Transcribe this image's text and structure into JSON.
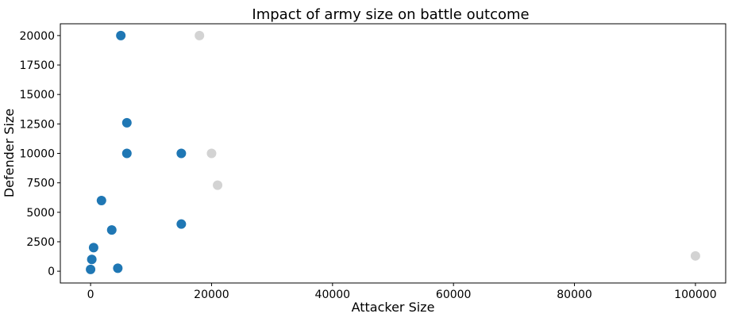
{
  "chart_data": {
    "type": "scatter",
    "title": "Impact of army size on battle outcome",
    "xlabel": "Attacker Size",
    "ylabel": "Defender Size",
    "xlim": [
      -5000,
      105000
    ],
    "ylim": [
      -1000,
      21000
    ],
    "xticks": [
      0,
      20000,
      40000,
      60000,
      80000,
      100000
    ],
    "yticks": [
      0,
      2500,
      5000,
      7500,
      10000,
      12500,
      15000,
      17500,
      20000
    ],
    "grid": false,
    "colors": {
      "blue": "#1f77b4",
      "gray": "#d3d3d3"
    },
    "series": [
      {
        "color": "#1f77b4",
        "points": [
          {
            "x": 5000,
            "y": 20000
          },
          {
            "x": 6000,
            "y": 12600
          },
          {
            "x": 6000,
            "y": 10000
          },
          {
            "x": 15000,
            "y": 10000
          },
          {
            "x": 1800,
            "y": 6000
          },
          {
            "x": 3500,
            "y": 3500
          },
          {
            "x": 15000,
            "y": 4000
          },
          {
            "x": 500,
            "y": 2000
          },
          {
            "x": 200,
            "y": 1000
          },
          {
            "x": 4500,
            "y": 250
          },
          {
            "x": 0,
            "y": 150
          }
        ]
      },
      {
        "color": "#d3d3d3",
        "points": [
          {
            "x": 18000,
            "y": 20000
          },
          {
            "x": 20000,
            "y": 10000
          },
          {
            "x": 21000,
            "y": 7300
          },
          {
            "x": 100000,
            "y": 1300
          }
        ]
      }
    ]
  }
}
